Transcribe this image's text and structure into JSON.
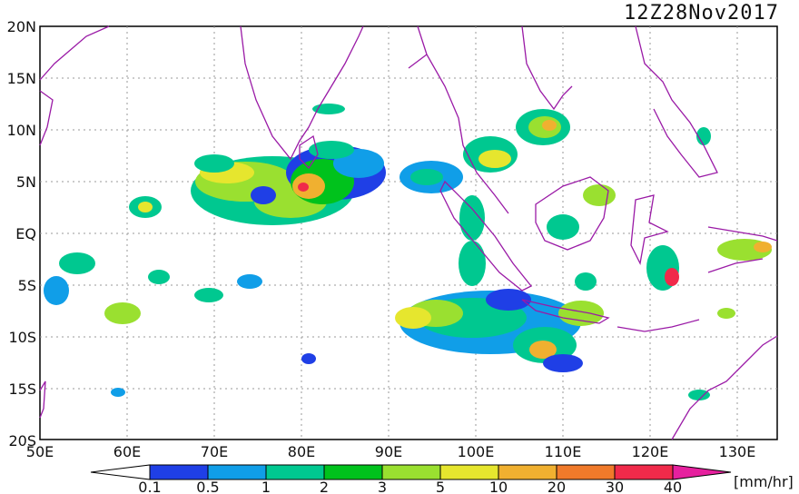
{
  "map": {
    "title": "12Z28Nov2017",
    "lat_labels": [
      "20N",
      "15N",
      "10N",
      "5N",
      "EQ",
      "5S",
      "10S",
      "15S",
      "20S"
    ],
    "lon_labels": [
      "50E",
      "60E",
      "70E",
      "80E",
      "90E",
      "100E",
      "110E",
      "120E",
      "130E"
    ],
    "lon_range": [
      50,
      135
    ],
    "lat_range": [
      -20,
      20
    ],
    "grid": true,
    "coastline_color": "#9a1aa6"
  },
  "legend": {
    "unit": "[mm/hr]",
    "ticks": [
      "0.1",
      "0.5",
      "1",
      "2",
      "3",
      "5",
      "10",
      "20",
      "30",
      "40"
    ],
    "colors": [
      "#1f3fe6",
      "#109ee8",
      "#00c890",
      "#00c21c",
      "#9ae030",
      "#e6e62e",
      "#f0b030",
      "#f07a2a",
      "#f02a4a",
      "#e6209e"
    ]
  },
  "rain_colors": {
    "blue": "#1f3fe6",
    "lightblue": "#109ee8",
    "teal": "#00c890",
    "green": "#00c21c",
    "lime": "#9ae030",
    "yellow": "#e6e62e",
    "orange": "#f0b030",
    "red": "#f02a4a"
  }
}
